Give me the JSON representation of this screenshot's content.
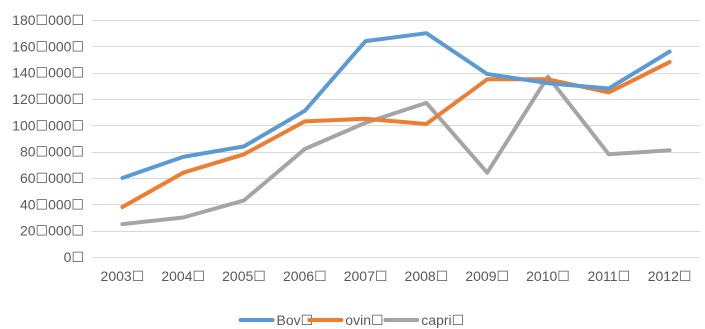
{
  "chart_data": {
    "type": "line",
    "title": "",
    "xlabel": "",
    "ylabel": "",
    "categories": [
      "2003",
      "2004",
      "2005",
      "2006",
      "2007",
      "2008",
      "2009",
      "2010",
      "2011",
      "2012"
    ],
    "category_labels": [
      "2003☐",
      "2004☐",
      "2005☐",
      "2006☐",
      "2007☐",
      "2008☐",
      "2009☐",
      "2010☐",
      "2011☐",
      "2012☐"
    ],
    "ylim": [
      0,
      180000
    ],
    "yticks": [
      0,
      20000,
      40000,
      60000,
      80000,
      100000,
      120000,
      140000,
      160000,
      180000
    ],
    "ytick_labels": [
      "0☐",
      "20☐000☐",
      "40☐000☐",
      "60☐000☐",
      "80☐000☐",
      "100☐000☐",
      "120☐000☐",
      "140☐000☐",
      "160☐000☐",
      "180☐000☐"
    ],
    "grid": true,
    "legend_position": "bottom",
    "series": [
      {
        "name": "Bov☐",
        "color": "#5B9BD5",
        "values": [
          60000,
          76000,
          84000,
          111000,
          164000,
          170000,
          139000,
          132000,
          128000,
          156000
        ]
      },
      {
        "name": "ovin☐",
        "color": "#ED7D31",
        "values": [
          38000,
          64000,
          78000,
          103000,
          105000,
          101000,
          135000,
          135000,
          125000,
          148000
        ]
      },
      {
        "name": "capri☐",
        "color": "#A5A5A5",
        "values": [
          25000,
          30000,
          43000,
          82000,
          102000,
          117000,
          64000,
          137000,
          78000,
          81000
        ]
      }
    ]
  }
}
